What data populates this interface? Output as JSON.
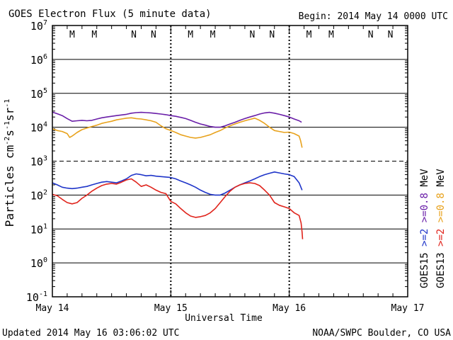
{
  "header": {
    "title": "GOES Electron Flux (5 minute data)",
    "begin": "Begin: 2014 May 14 0000 UTC"
  },
  "footer": {
    "updated": "Updated 2014 May 16 03:06:02 UTC",
    "credit": "NOAA/SWPC Boulder, CO USA"
  },
  "axes": {
    "ylabel_prefix": "Particles cm",
    "xlabel": "Universal Time"
  },
  "legend": [
    {
      "satellite": "GOES15",
      "energy1": ">=2",
      "energy2": ">=0.8",
      "unit": "MeV"
    },
    {
      "satellite": "GOES13",
      "energy1": ">=2",
      "energy2": ">=0.8",
      "unit": "MeV"
    }
  ],
  "colors": {
    "goes15_ge2": "#1f35c9",
    "goes15_ge08": "#6a1fa8",
    "goes13_ge2": "#e0241c",
    "goes13_ge08": "#e8a21c",
    "marker_M": "#d81e1e",
    "marker_N": "#1e2fd8"
  },
  "chart_data": {
    "type": "line",
    "title": "GOES Electron Flux (5 minute data)",
    "xlabel": "Universal Time",
    "ylabel": "Particles cm-2 s-1 sr-1",
    "yscale": "log",
    "ylim": [
      0.1,
      10000000
    ],
    "xlim": [
      0,
      72
    ],
    "x_unit": "hours since 2014 May 14 0000 UTC",
    "x_ticks": [
      {
        "value": 0,
        "label": "May 14"
      },
      {
        "value": 24,
        "label": "May 15"
      },
      {
        "value": 48,
        "label": "May 16"
      },
      {
        "value": 72,
        "label": "May 17"
      }
    ],
    "y_ticks": [
      {
        "value": 0.1,
        "base": "10",
        "exp": "-1"
      },
      {
        "value": 1,
        "base": "10",
        "exp": "0"
      },
      {
        "value": 10,
        "base": "10",
        "exp": "1"
      },
      {
        "value": 100,
        "base": "10",
        "exp": "2"
      },
      {
        "value": 1000,
        "base": "10",
        "exp": "3"
      },
      {
        "value": 10000,
        "base": "10",
        "exp": "4"
      },
      {
        "value": 100000,
        "base": "10",
        "exp": "5"
      },
      {
        "value": 1000000,
        "base": "10",
        "exp": "6"
      },
      {
        "value": 10000000,
        "base": "10",
        "exp": "7"
      }
    ],
    "threshold": 1000,
    "local_noon_markers": [
      {
        "label": "M",
        "x": 4
      },
      {
        "label": "M",
        "x": 8.5
      },
      {
        "label": "N",
        "x": 16.5
      },
      {
        "label": "N",
        "x": 20.5
      },
      {
        "label": "M",
        "x": 28
      },
      {
        "label": "M",
        "x": 32.5
      },
      {
        "label": "N",
        "x": 40.5
      },
      {
        "label": "N",
        "x": 44.5
      },
      {
        "label": "M",
        "x": 52
      },
      {
        "label": "M",
        "x": 56.5
      },
      {
        "label": "N",
        "x": 64.5
      },
      {
        "label": "N",
        "x": 68.5
      }
    ],
    "series": [
      {
        "name": "GOES15 >=0.8 MeV",
        "colorKey": "goes15_ge08",
        "points": [
          [
            0,
            28000
          ],
          [
            1,
            25000
          ],
          [
            2,
            22000
          ],
          [
            3,
            18000
          ],
          [
            4,
            15000
          ],
          [
            5,
            15500
          ],
          [
            6,
            16000
          ],
          [
            7,
            15500
          ],
          [
            8,
            16000
          ],
          [
            9,
            17500
          ],
          [
            10,
            19000
          ],
          [
            11,
            20000
          ],
          [
            12,
            21000
          ],
          [
            13,
            22000
          ],
          [
            14,
            23000
          ],
          [
            15,
            24000
          ],
          [
            16,
            26000
          ],
          [
            17,
            27000
          ],
          [
            18,
            27500
          ],
          [
            19,
            27000
          ],
          [
            20,
            26500
          ],
          [
            21,
            25500
          ],
          [
            22,
            24500
          ],
          [
            23,
            23500
          ],
          [
            24,
            22000
          ],
          [
            25,
            21000
          ],
          [
            26,
            19500
          ],
          [
            27,
            18000
          ],
          [
            28,
            16000
          ],
          [
            29,
            14000
          ],
          [
            30,
            12500
          ],
          [
            31,
            11500
          ],
          [
            32,
            10500
          ],
          [
            33,
            10000
          ],
          [
            34,
            10000
          ],
          [
            35,
            11000
          ],
          [
            36,
            12500
          ],
          [
            37,
            14000
          ],
          [
            38,
            16000
          ],
          [
            39,
            18000
          ],
          [
            40,
            20000
          ],
          [
            41,
            22000
          ],
          [
            42,
            24500
          ],
          [
            43,
            26500
          ],
          [
            44,
            27500
          ],
          [
            45,
            26000
          ],
          [
            46,
            24000
          ],
          [
            47,
            22000
          ],
          [
            48,
            20000
          ],
          [
            49,
            17500
          ],
          [
            50,
            15500
          ],
          [
            50.5,
            14000
          ]
        ]
      },
      {
        "name": "GOES13 >=0.8 MeV",
        "colorKey": "goes13_ge08",
        "points": [
          [
            0,
            9000
          ],
          [
            1,
            8000
          ],
          [
            2,
            7500
          ],
          [
            3,
            6500
          ],
          [
            3.5,
            5000
          ],
          [
            4,
            5500
          ],
          [
            5,
            7000
          ],
          [
            6,
            8500
          ],
          [
            7,
            9500
          ],
          [
            8,
            10500
          ],
          [
            9,
            11500
          ],
          [
            10,
            13000
          ],
          [
            11,
            14000
          ],
          [
            12,
            15000
          ],
          [
            13,
            16500
          ],
          [
            14,
            17500
          ],
          [
            15,
            18500
          ],
          [
            16,
            19000
          ],
          [
            17,
            18000
          ],
          [
            18,
            17500
          ],
          [
            19,
            16500
          ],
          [
            20,
            15500
          ],
          [
            21,
            14000
          ],
          [
            22,
            11000
          ],
          [
            23,
            9000
          ],
          [
            24,
            8000
          ],
          [
            25,
            7000
          ],
          [
            26,
            6000
          ],
          [
            27,
            5500
          ],
          [
            28,
            5000
          ],
          [
            29,
            4800
          ],
          [
            30,
            5000
          ],
          [
            31,
            5500
          ],
          [
            32,
            6000
          ],
          [
            33,
            7000
          ],
          [
            34,
            8000
          ],
          [
            35,
            9500
          ],
          [
            36,
            11000
          ],
          [
            37,
            12500
          ],
          [
            38,
            14000
          ],
          [
            39,
            15500
          ],
          [
            40,
            17000
          ],
          [
            41,
            18500
          ],
          [
            42,
            16000
          ],
          [
            43,
            13000
          ],
          [
            44,
            10000
          ],
          [
            45,
            8000
          ],
          [
            46,
            7500
          ],
          [
            47,
            7000
          ],
          [
            48,
            7200
          ],
          [
            49,
            6500
          ],
          [
            50,
            5500
          ],
          [
            50.3,
            4000
          ],
          [
            50.6,
            2500
          ]
        ]
      },
      {
        "name": "GOES15 >=2 MeV",
        "colorKey": "goes15_ge2",
        "points": [
          [
            0,
            230
          ],
          [
            1,
            200
          ],
          [
            2,
            170
          ],
          [
            3,
            160
          ],
          [
            4,
            155
          ],
          [
            5,
            160
          ],
          [
            6,
            170
          ],
          [
            7,
            180
          ],
          [
            8,
            200
          ],
          [
            9,
            220
          ],
          [
            10,
            240
          ],
          [
            11,
            250
          ],
          [
            12,
            240
          ],
          [
            13,
            230
          ],
          [
            14,
            260
          ],
          [
            15,
            300
          ],
          [
            16,
            380
          ],
          [
            17,
            420
          ],
          [
            18,
            400
          ],
          [
            19,
            370
          ],
          [
            20,
            380
          ],
          [
            21,
            360
          ],
          [
            22,
            350
          ],
          [
            23,
            340
          ],
          [
            24,
            330
          ],
          [
            25,
            300
          ],
          [
            26,
            260
          ],
          [
            27,
            230
          ],
          [
            28,
            200
          ],
          [
            29,
            170
          ],
          [
            30,
            140
          ],
          [
            31,
            120
          ],
          [
            32,
            105
          ],
          [
            33,
            100
          ],
          [
            34,
            100
          ],
          [
            35,
            115
          ],
          [
            36,
            140
          ],
          [
            37,
            170
          ],
          [
            38,
            200
          ],
          [
            39,
            230
          ],
          [
            40,
            260
          ],
          [
            41,
            300
          ],
          [
            42,
            350
          ],
          [
            43,
            400
          ],
          [
            44,
            440
          ],
          [
            45,
            480
          ],
          [
            46,
            450
          ],
          [
            47,
            420
          ],
          [
            48,
            400
          ],
          [
            49,
            350
          ],
          [
            50,
            230
          ],
          [
            50.6,
            140
          ]
        ]
      },
      {
        "name": "GOES13 >=2 MeV",
        "colorKey": "goes13_ge2",
        "points": [
          [
            0,
            105
          ],
          [
            1,
            95
          ],
          [
            2,
            75
          ],
          [
            3,
            60
          ],
          [
            4,
            55
          ],
          [
            5,
            60
          ],
          [
            6,
            80
          ],
          [
            7,
            100
          ],
          [
            8,
            130
          ],
          [
            9,
            160
          ],
          [
            10,
            190
          ],
          [
            11,
            210
          ],
          [
            12,
            220
          ],
          [
            13,
            210
          ],
          [
            14,
            240
          ],
          [
            15,
            280
          ],
          [
            16,
            300
          ],
          [
            17,
            240
          ],
          [
            18,
            180
          ],
          [
            19,
            200
          ],
          [
            20,
            170
          ],
          [
            21,
            140
          ],
          [
            22,
            120
          ],
          [
            23,
            110
          ],
          [
            24,
            65
          ],
          [
            25,
            55
          ],
          [
            26,
            40
          ],
          [
            27,
            30
          ],
          [
            28,
            24
          ],
          [
            29,
            22
          ],
          [
            30,
            23
          ],
          [
            31,
            25
          ],
          [
            32,
            30
          ],
          [
            33,
            40
          ],
          [
            34,
            60
          ],
          [
            35,
            90
          ],
          [
            36,
            130
          ],
          [
            37,
            170
          ],
          [
            38,
            200
          ],
          [
            39,
            220
          ],
          [
            40,
            230
          ],
          [
            41,
            220
          ],
          [
            42,
            190
          ],
          [
            43,
            140
          ],
          [
            44,
            100
          ],
          [
            45,
            60
          ],
          [
            46,
            50
          ],
          [
            47,
            45
          ],
          [
            48,
            40
          ],
          [
            49,
            30
          ],
          [
            50,
            25
          ],
          [
            50.4,
            15
          ],
          [
            50.6,
            8
          ],
          [
            50.7,
            5
          ]
        ]
      }
    ]
  }
}
